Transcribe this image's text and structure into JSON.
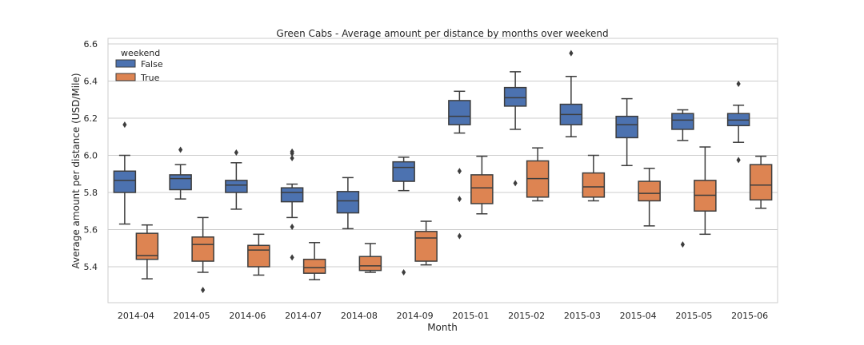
{
  "chart_data": {
    "type": "box",
    "title": "Green Cabs - Average amount per distance by months over weekend",
    "xlabel": "Month",
    "ylabel": "Average amount per distance (USD/Mile)",
    "ylim": [
      5.2,
      6.62
    ],
    "yticks": [
      5.4,
      5.6,
      5.8,
      6.0,
      6.2,
      6.4,
      6.6
    ],
    "ytick_labels": [
      "5.4",
      "5.6",
      "5.8",
      "6.0",
      "6.2",
      "6.4",
      "6.6"
    ],
    "grid": "horizontal",
    "legend_title": "weekend",
    "legend_position": "top-left",
    "categories": [
      "2014-04",
      "2014-05",
      "2014-06",
      "2014-07",
      "2014-08",
      "2014-09",
      "2015-01",
      "2015-02",
      "2015-03",
      "2015-04",
      "2015-05",
      "2015-06"
    ],
    "series": [
      {
        "name": "False",
        "color": "#4c72b0",
        "boxes": [
          {
            "whislo": 5.63,
            "q1": 5.8,
            "med": 5.865,
            "q3": 5.915,
            "whishi": 6.0,
            "fliers": [
              6.165
            ]
          },
          {
            "whislo": 5.765,
            "q1": 5.815,
            "med": 5.875,
            "q3": 5.895,
            "whishi": 5.95,
            "fliers": [
              6.03
            ]
          },
          {
            "whislo": 5.71,
            "q1": 5.8,
            "med": 5.84,
            "q3": 5.865,
            "whishi": 5.96,
            "fliers": [
              6.015
            ]
          },
          {
            "whislo": 5.665,
            "q1": 5.75,
            "med": 5.8,
            "q3": 5.825,
            "whishi": 5.845,
            "fliers": [
              5.985,
              6.01,
              6.02,
              5.615,
              5.45
            ]
          },
          {
            "whislo": 5.605,
            "q1": 5.69,
            "med": 5.755,
            "q3": 5.805,
            "whishi": 5.88,
            "fliers": []
          },
          {
            "whislo": 5.81,
            "q1": 5.86,
            "med": 5.935,
            "q3": 5.965,
            "whishi": 5.99,
            "fliers": [
              5.37
            ]
          },
          {
            "whislo": 6.12,
            "q1": 6.165,
            "med": 6.21,
            "q3": 6.295,
            "whishi": 6.345,
            "fliers": [
              5.915,
              5.765,
              5.565
            ]
          },
          {
            "whislo": 6.14,
            "q1": 6.265,
            "med": 6.31,
            "q3": 6.365,
            "whishi": 6.45,
            "fliers": [
              5.85
            ]
          },
          {
            "whislo": 6.1,
            "q1": 6.165,
            "med": 6.22,
            "q3": 6.275,
            "whishi": 6.425,
            "fliers": [
              6.55
            ]
          },
          {
            "whislo": 5.945,
            "q1": 6.095,
            "med": 6.165,
            "q3": 6.21,
            "whishi": 6.305,
            "fliers": []
          },
          {
            "whislo": 6.08,
            "q1": 6.14,
            "med": 6.19,
            "q3": 6.225,
            "whishi": 6.245,
            "fliers": [
              5.52
            ]
          },
          {
            "whislo": 6.07,
            "q1": 6.16,
            "med": 6.19,
            "q3": 6.225,
            "whishi": 6.27,
            "fliers": [
              6.385,
              5.975
            ]
          }
        ]
      },
      {
        "name": "True",
        "color": "#dd8452",
        "boxes": [
          {
            "whislo": 5.335,
            "q1": 5.44,
            "med": 5.46,
            "q3": 5.58,
            "whishi": 5.625,
            "fliers": []
          },
          {
            "whislo": 5.37,
            "q1": 5.43,
            "med": 5.52,
            "q3": 5.56,
            "whishi": 5.665,
            "fliers": [
              5.275
            ]
          },
          {
            "whislo": 5.355,
            "q1": 5.4,
            "med": 5.49,
            "q3": 5.515,
            "whishi": 5.575,
            "fliers": []
          },
          {
            "whislo": 5.33,
            "q1": 5.365,
            "med": 5.395,
            "q3": 5.44,
            "whishi": 5.53,
            "fliers": []
          },
          {
            "whislo": 5.37,
            "q1": 5.38,
            "med": 5.405,
            "q3": 5.455,
            "whishi": 5.525,
            "fliers": []
          },
          {
            "whislo": 5.41,
            "q1": 5.43,
            "med": 5.555,
            "q3": 5.59,
            "whishi": 5.645,
            "fliers": []
          },
          {
            "whislo": 5.685,
            "q1": 5.74,
            "med": 5.825,
            "q3": 5.895,
            "whishi": 5.995,
            "fliers": []
          },
          {
            "whislo": 5.755,
            "q1": 5.775,
            "med": 5.875,
            "q3": 5.97,
            "whishi": 6.04,
            "fliers": []
          },
          {
            "whislo": 5.755,
            "q1": 5.775,
            "med": 5.83,
            "q3": 5.905,
            "whishi": 6.0,
            "fliers": []
          },
          {
            "whislo": 5.62,
            "q1": 5.755,
            "med": 5.795,
            "q3": 5.86,
            "whishi": 5.93,
            "fliers": []
          },
          {
            "whislo": 5.575,
            "q1": 5.7,
            "med": 5.785,
            "q3": 5.865,
            "whishi": 6.045,
            "fliers": []
          },
          {
            "whislo": 5.715,
            "q1": 5.76,
            "med": 5.84,
            "q3": 5.95,
            "whishi": 5.995,
            "fliers": []
          }
        ]
      }
    ]
  }
}
